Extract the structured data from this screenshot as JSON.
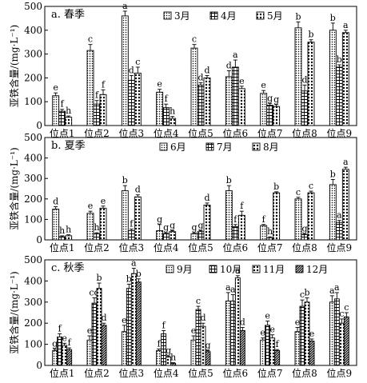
{
  "chart_data": [
    {
      "type": "bar",
      "panel_title": "a. 春季",
      "ylabel": "亚铁含量/(mg·L⁻¹)",
      "ylim": [
        0,
        500
      ],
      "yticks": [
        0,
        100,
        200,
        300,
        400,
        500
      ],
      "categories": [
        "位点1",
        "位点2",
        "位点3",
        "位点4",
        "位点5",
        "位点6",
        "位点7",
        "位点8",
        "位点9"
      ],
      "legend_position": "top-right",
      "series": [
        {
          "name": "3月",
          "pattern": "dots",
          "values": [
            125,
            315,
            460,
            140,
            325,
            205,
            135,
            410,
            400
          ],
          "errors": [
            12,
            25,
            20,
            12,
            15,
            25,
            12,
            25,
            30
          ],
          "letters": [
            "e",
            "c",
            "a",
            "e",
            "c",
            "d",
            "e",
            "b",
            "b"
          ]
        },
        {
          "name": "4月",
          "pattern": "grid",
          "values": [
            60,
            90,
            190,
            75,
            170,
            245,
            85,
            145,
            245
          ],
          "errors": [
            8,
            15,
            20,
            15,
            10,
            30,
            8,
            25,
            10
          ],
          "letters": [
            "f",
            "f",
            "d",
            "f",
            "d",
            "a",
            "g",
            "d",
            "b"
          ]
        },
        {
          "name": "5月",
          "pattern": "bigdots",
          "values": [
            35,
            130,
            220,
            30,
            200,
            155,
            80,
            350,
            390
          ],
          "errors": [
            5,
            20,
            25,
            8,
            10,
            10,
            8,
            10,
            10
          ],
          "letters": [
            "h",
            "f",
            "c",
            "h",
            "d",
            "e",
            "g",
            "b",
            "a"
          ]
        }
      ]
    },
    {
      "type": "bar",
      "panel_title": "b. 夏季",
      "ylabel": "亚铁含量/(mg·L⁻¹)",
      "ylim": [
        0,
        500
      ],
      "yticks": [
        0,
        100,
        200,
        300,
        400,
        500
      ],
      "categories": [
        "位点1",
        "位点2",
        "位点3",
        "位点4",
        "位点5",
        "位点6",
        "位点7",
        "位点8",
        "位点9"
      ],
      "legend_position": "top-right",
      "series": [
        {
          "name": "6月",
          "pattern": "dots",
          "values": [
            150,
            130,
            240,
            45,
            30,
            240,
            70,
            200,
            270
          ],
          "errors": [
            12,
            10,
            25,
            30,
            5,
            25,
            5,
            8,
            25
          ],
          "letters": [
            "d",
            "e",
            "b",
            "g",
            "g",
            "b",
            "f",
            "c",
            "b"
          ]
        },
        {
          "name": "7月",
          "pattern": "grid",
          "values": [
            15,
            30,
            45,
            30,
            40,
            65,
            10,
            25,
            85
          ],
          "errors": [
            5,
            5,
            8,
            5,
            5,
            10,
            5,
            5,
            10
          ],
          "letters": [
            "h",
            "h",
            "f",
            "g",
            "g",
            "f",
            "h",
            "g",
            "a"
          ]
        },
        {
          "name": "8月",
          "pattern": "bigdots",
          "values": [
            20,
            155,
            210,
            40,
            170,
            120,
            230,
            230,
            345
          ],
          "errors": [
            5,
            10,
            10,
            5,
            10,
            20,
            5,
            8,
            10
          ],
          "letters": [
            "h",
            "e",
            "d",
            "g",
            "d",
            "f",
            "b",
            "c",
            "a"
          ]
        }
      ]
    },
    {
      "type": "bar",
      "panel_title": "c. 秋季",
      "ylabel": "亚铁含量/(mg·L⁻¹)",
      "ylim": [
        0,
        500
      ],
      "yticks": [
        0,
        100,
        200,
        300,
        400,
        500
      ],
      "categories": [
        "位点1",
        "位点2",
        "位点3",
        "位点4",
        "位点5",
        "位点6",
        "位点7",
        "位点8",
        "位点9"
      ],
      "legend_position": "top-right",
      "series": [
        {
          "name": "9月",
          "pattern": "dots",
          "values": [
            70,
            120,
            160,
            70,
            120,
            305,
            120,
            160,
            300
          ],
          "errors": [
            8,
            20,
            30,
            8,
            20,
            40,
            10,
            20,
            30
          ],
          "letters": [
            "g",
            "e",
            "e",
            "f",
            "e",
            "a",
            "e",
            "e",
            "a"
          ]
        },
        {
          "name": "10月",
          "pattern": "grid",
          "values": [
            135,
            295,
            365,
            150,
            265,
            305,
            190,
            280,
            315
          ],
          "errors": [
            15,
            25,
            20,
            15,
            15,
            30,
            20,
            30,
            30
          ],
          "letters": [
            "f",
            "cd",
            "b",
            "f",
            "c",
            "a",
            "e",
            "c",
            "a"
          ]
        },
        {
          "name": "11月",
          "pattern": "bigdots",
          "values": [
            95,
            365,
            435,
            40,
            185,
            415,
            130,
            300,
            200
          ],
          "errors": [
            10,
            25,
            25,
            5,
            15,
            10,
            15,
            20,
            20
          ],
          "letters": [
            "e",
            "b",
            "a",
            "g",
            "d",
            "a",
            "e",
            "b",
            "c"
          ]
        },
        {
          "name": "12月",
          "pattern": "hatch",
          "values": [
            75,
            190,
            395,
            10,
            65,
            165,
            70,
            115,
            230
          ],
          "errors": [
            8,
            10,
            15,
            3,
            5,
            15,
            5,
            10,
            20
          ],
          "letters": [
            "f",
            "d",
            "b",
            "h",
            "g",
            "d",
            "f",
            "e",
            "c"
          ]
        }
      ]
    }
  ]
}
